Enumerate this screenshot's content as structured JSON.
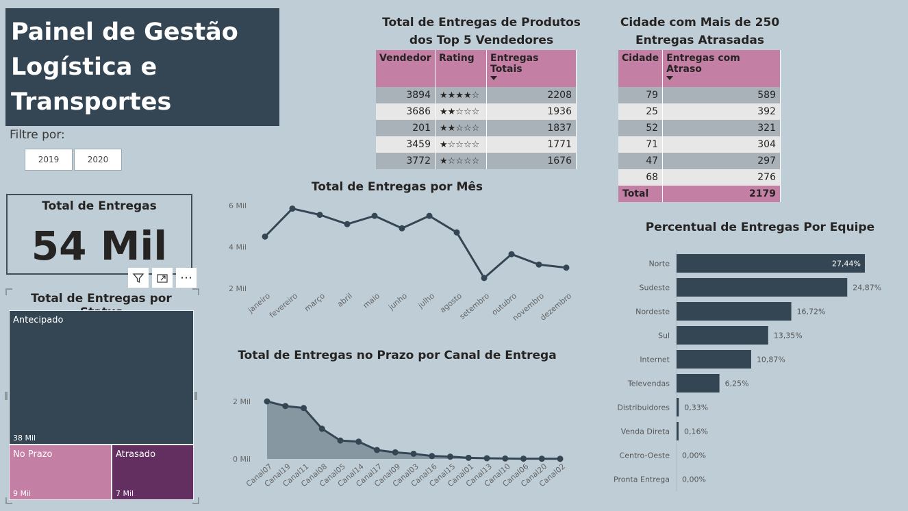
{
  "header": {
    "title": "Painel de Gestão Logística e Transportes"
  },
  "filter": {
    "label": "Filtre por:",
    "options": [
      "2019",
      "2020"
    ]
  },
  "card": {
    "title": "Total de Entregas",
    "value": "54 Mil"
  },
  "toolbar": {
    "icons": [
      "filter-icon",
      "focus-mode-icon",
      "more-options-icon"
    ],
    "more_label": "⋯"
  },
  "treemap": {
    "title": "Total de Entregas por Status",
    "items": [
      {
        "label": "Antecipado",
        "value": "38 Mil",
        "color": "#344654"
      },
      {
        "label": "No Prazo",
        "value": "9 Mil",
        "color": "#c47fa5"
      },
      {
        "label": "Atrasado",
        "value": "7 Mil",
        "color": "#632f61"
      }
    ]
  },
  "top_sellers": {
    "title": "Total de Entregas de Produtos dos Top 5 Vendedores",
    "columns": [
      "Vendedor",
      "Rating",
      "Entregas Totais"
    ],
    "rows": [
      [
        "3894",
        "★★★★☆",
        "2208"
      ],
      [
        "3686",
        "★★☆☆☆",
        "1936"
      ],
      [
        "201",
        "★★☆☆☆",
        "1837"
      ],
      [
        "3459",
        "★☆☆☆☆",
        "1771"
      ],
      [
        "3772",
        "★☆☆☆☆",
        "1676"
      ]
    ]
  },
  "cities": {
    "title": "Cidade com Mais de 250 Entregas Atrasadas",
    "columns": [
      "Cidade",
      "Entregas com Atraso"
    ],
    "rows": [
      [
        "79",
        "589"
      ],
      [
        "25",
        "392"
      ],
      [
        "52",
        "321"
      ],
      [
        "71",
        "304"
      ],
      [
        "47",
        "297"
      ],
      [
        "68",
        "276"
      ]
    ],
    "total": [
      "Total",
      "2179"
    ]
  },
  "chart_data": [
    {
      "type": "line",
      "title": "Total de Entregas por Mês",
      "categories": [
        "janeiro",
        "fevereiro",
        "março",
        "abril",
        "maio",
        "junho",
        "julho",
        "agosto",
        "setembro",
        "outubro",
        "novembro",
        "dezembro"
      ],
      "values": [
        4500,
        5850,
        5550,
        5100,
        5500,
        4900,
        5500,
        4700,
        2500,
        3650,
        3150,
        3000
      ],
      "ylim": [
        2000,
        6000
      ],
      "yticks": [
        "2 Mil",
        "4 Mil",
        "6 Mil"
      ],
      "color": "#344654"
    },
    {
      "type": "area",
      "title": "Total de Entregas no Prazo por Canal de Entrega",
      "categories": [
        "Canal07",
        "Canal19",
        "Canal11",
        "Canal08",
        "Canal05",
        "Canal14",
        "Canal17",
        "Canal09",
        "Canal03",
        "Canal16",
        "Canal15",
        "Canal01",
        "Canal13",
        "Canal10",
        "Canal06",
        "Canal20",
        "Canal02"
      ],
      "values": [
        2000,
        1840,
        1770,
        1050,
        640,
        600,
        310,
        230,
        180,
        100,
        80,
        40,
        25,
        15,
        10,
        8,
        5
      ],
      "ylim": [
        0,
        2000
      ],
      "yticks": [
        "0 Mil",
        "2 Mil"
      ],
      "color": "#344654",
      "fill": "#8797a2"
    },
    {
      "type": "bar",
      "title": "Percentual de Entregas Por Equipe",
      "orientation": "horizontal",
      "categories": [
        "Norte",
        "Sudeste",
        "Nordeste",
        "Sul",
        "Internet",
        "Televendas",
        "Distribuidores",
        "Venda Direta",
        "Centro-Oeste",
        "Pronta Entrega"
      ],
      "values": [
        27.44,
        24.87,
        16.72,
        13.35,
        10.87,
        6.25,
        0.33,
        0.16,
        0.0,
        0.0
      ],
      "labels": [
        "27,44%",
        "24,87%",
        "16,72%",
        "13,35%",
        "10,87%",
        "6,25%",
        "0,33%",
        "0,16%",
        "0,00%",
        "0,00%"
      ],
      "color": "#344654"
    }
  ]
}
